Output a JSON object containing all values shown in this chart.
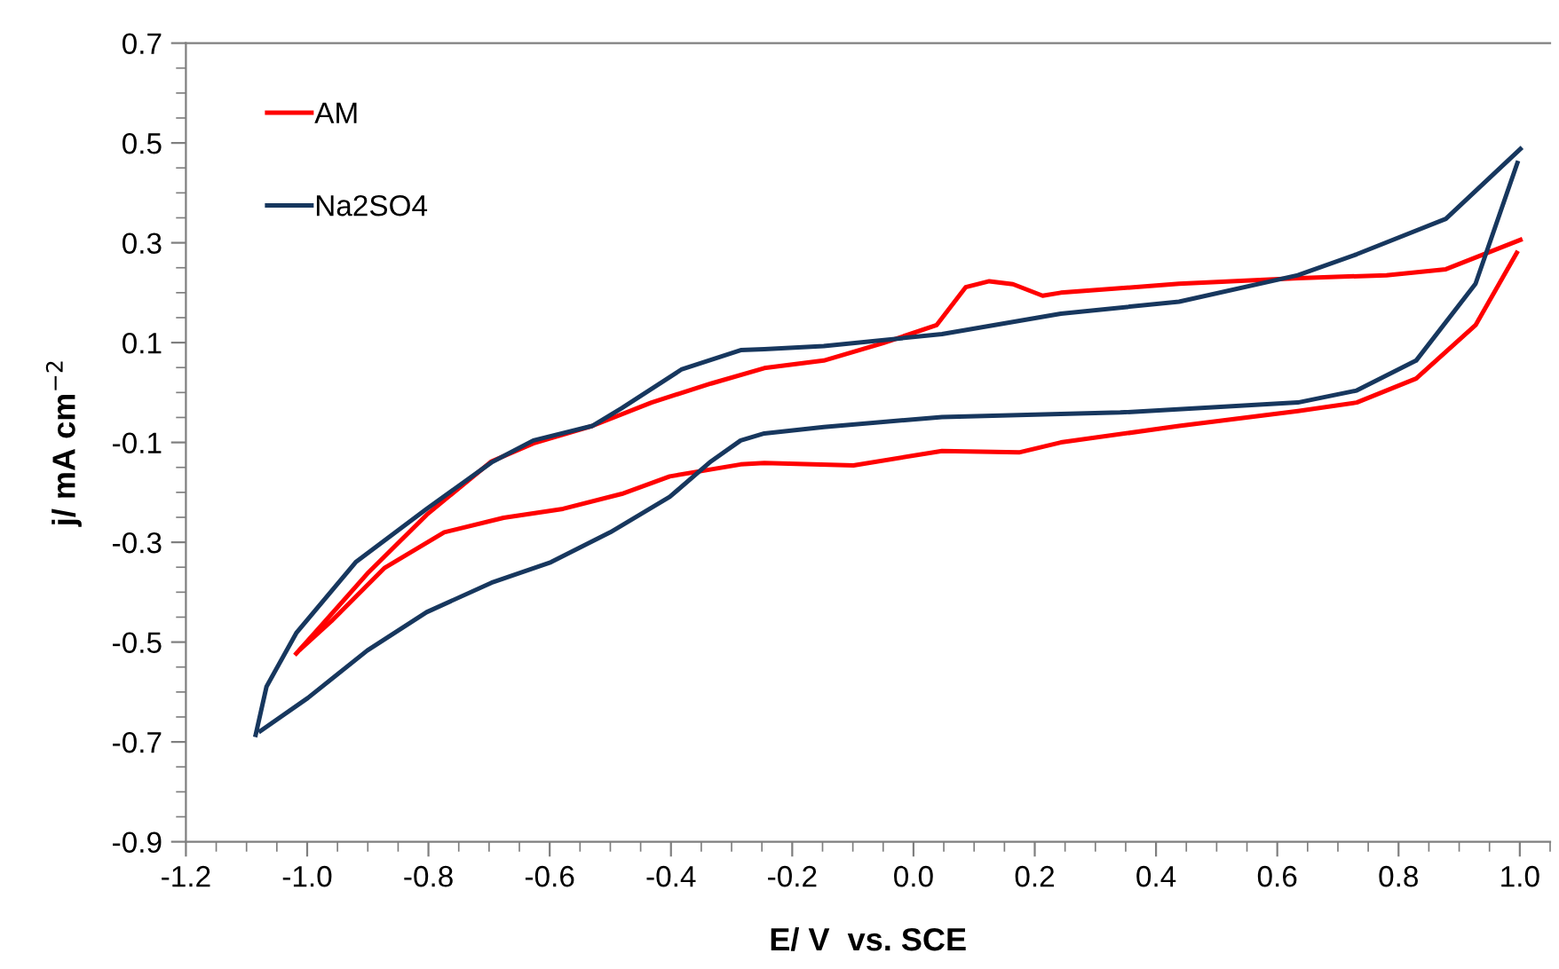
{
  "chart_data": {
    "type": "line",
    "xlabel": "E/ V  vs. SCE",
    "ylabel": "j/ mA cm$^{−2}$",
    "xlim": [
      -1.2,
      1.05
    ],
    "ylim": [
      -0.9,
      0.7
    ],
    "xticks": [
      -1.2,
      {
        "value": -1.0,
        "label": "-1.0"
      },
      -0.8,
      -0.6,
      -0.4,
      -0.2,
      {
        "value": 0.0,
        "label": "0.0"
      },
      0.2,
      0.4,
      0.6,
      0.8,
      {
        "value": 1.0,
        "label": "1.0"
      }
    ],
    "yticks": [
      -0.9,
      -0.7,
      -0.5,
      -0.3,
      -0.1,
      0.1,
      0.3,
      0.5,
      0.7
    ],
    "grid": false,
    "legend": "top left",
    "marker": "none",
    "line_style": "solid",
    "series": [
      {
        "name": "AM",
        "color": "#ff0000",
        "x": [
          -1.018,
          -0.979,
          -0.901,
          -0.803,
          -0.696,
          -0.627,
          -0.53,
          -0.432,
          -0.334,
          -0.246,
          -0.148,
          -0.05,
          0.038,
          0.086,
          0.125,
          0.164,
          0.213,
          0.243,
          0.438,
          0.634,
          0.78,
          0.878,
          1.001
        ],
        "values": [
          -0.523,
          -0.47,
          -0.363,
          -0.245,
          -0.138,
          -0.102,
          -0.067,
          -0.02,
          0.018,
          0.049,
          0.064,
          0.099,
          0.135,
          0.211,
          0.223,
          0.217,
          0.194,
          0.2,
          0.218,
          0.229,
          0.235,
          0.247,
          0.306
        ]
      },
      {
        "color": "#ff0000",
        "x": [
          -1.01,
          -0.96,
          -0.872,
          -0.774,
          -0.676,
          -0.578,
          -0.481,
          -0.402,
          -0.285,
          -0.246,
          -0.099,
          0.047,
          0.174,
          0.243,
          0.438,
          0.634,
          0.731,
          0.829,
          0.927,
          0.995
        ],
        "values": [
          -0.513,
          -0.458,
          -0.351,
          -0.28,
          -0.251,
          -0.233,
          -0.203,
          -0.168,
          -0.144,
          -0.141,
          -0.146,
          -0.117,
          -0.12,
          -0.1,
          -0.067,
          -0.037,
          -0.02,
          0.028,
          0.135,
          0.28
        ]
      },
      {
        "name": "Na2SO4",
        "color": "#17375e",
        "x": [
          -1.085,
          -1.067,
          -1.018,
          -0.92,
          -0.803,
          -0.696,
          -0.627,
          -0.53,
          -0.481,
          -0.383,
          -0.285,
          -0.246,
          -0.148,
          0.047,
          0.243,
          0.438,
          0.634,
          0.731,
          0.878,
          1.001
        ],
        "values": [
          -0.686,
          -0.589,
          -0.482,
          -0.34,
          -0.233,
          -0.14,
          -0.096,
          -0.067,
          -0.031,
          0.046,
          0.085,
          0.087,
          0.093,
          0.117,
          0.158,
          0.182,
          0.235,
          0.277,
          0.348,
          0.488
        ]
      },
      {
        "color": "#17375e",
        "x": [
          -1.077,
          -0.999,
          -0.901,
          -0.803,
          -0.696,
          -0.598,
          -0.5,
          -0.402,
          -0.334,
          -0.285,
          -0.246,
          -0.148,
          0.047,
          0.341,
          0.634,
          0.731,
          0.829,
          0.927,
          0.996
        ],
        "values": [
          -0.678,
          -0.612,
          -0.517,
          -0.44,
          -0.381,
          -0.34,
          -0.28,
          -0.209,
          -0.138,
          -0.096,
          -0.082,
          -0.069,
          -0.049,
          -0.04,
          -0.02,
          0.004,
          0.064,
          0.218,
          0.46
        ]
      }
    ]
  }
}
